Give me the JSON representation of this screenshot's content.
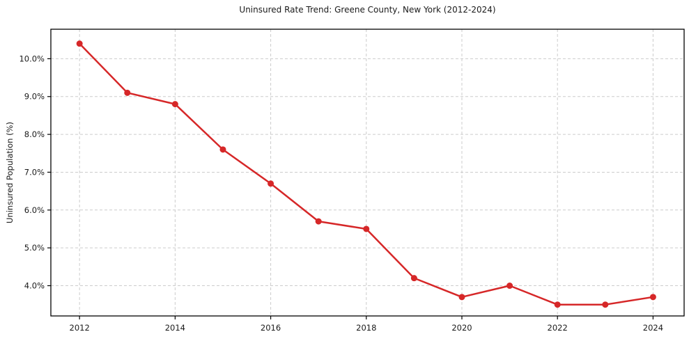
{
  "page": {
    "background": "#ffffff"
  },
  "chart_data": {
    "type": "line",
    "title": "Uninsured Rate Trend: Greene County, New York (2012-2024)",
    "xlabel": "",
    "ylabel": "Uninsured Population (%)",
    "x": [
      2012,
      2013,
      2014,
      2015,
      2016,
      2017,
      2018,
      2019,
      2020,
      2021,
      2022,
      2023,
      2024
    ],
    "values": [
      10.4,
      9.1,
      8.8,
      7.6,
      6.7,
      5.7,
      5.5,
      4.2,
      3.7,
      4.0,
      3.5,
      3.5,
      3.7
    ],
    "xlim": [
      2011.4,
      2024.65
    ],
    "ylim": [
      3.2,
      10.78
    ],
    "xticks": [
      2012,
      2014,
      2016,
      2018,
      2020,
      2022,
      2024
    ],
    "xtick_labels": [
      "2012",
      "2014",
      "2016",
      "2018",
      "2020",
      "2022",
      "2024"
    ],
    "yticks": [
      4,
      5,
      6,
      7,
      8,
      9,
      10
    ],
    "ytick_labels": [
      "4.0%",
      "5.0%",
      "6.0%",
      "7.0%",
      "8.0%",
      "9.0%",
      "10.0%"
    ],
    "grid": true,
    "grid_style": "dashed",
    "legend": "none",
    "marker": "circle",
    "colors": {
      "line": "#d62728",
      "grid": "#cccccc",
      "frame": "#000000",
      "text": "#1a1a1a"
    }
  }
}
